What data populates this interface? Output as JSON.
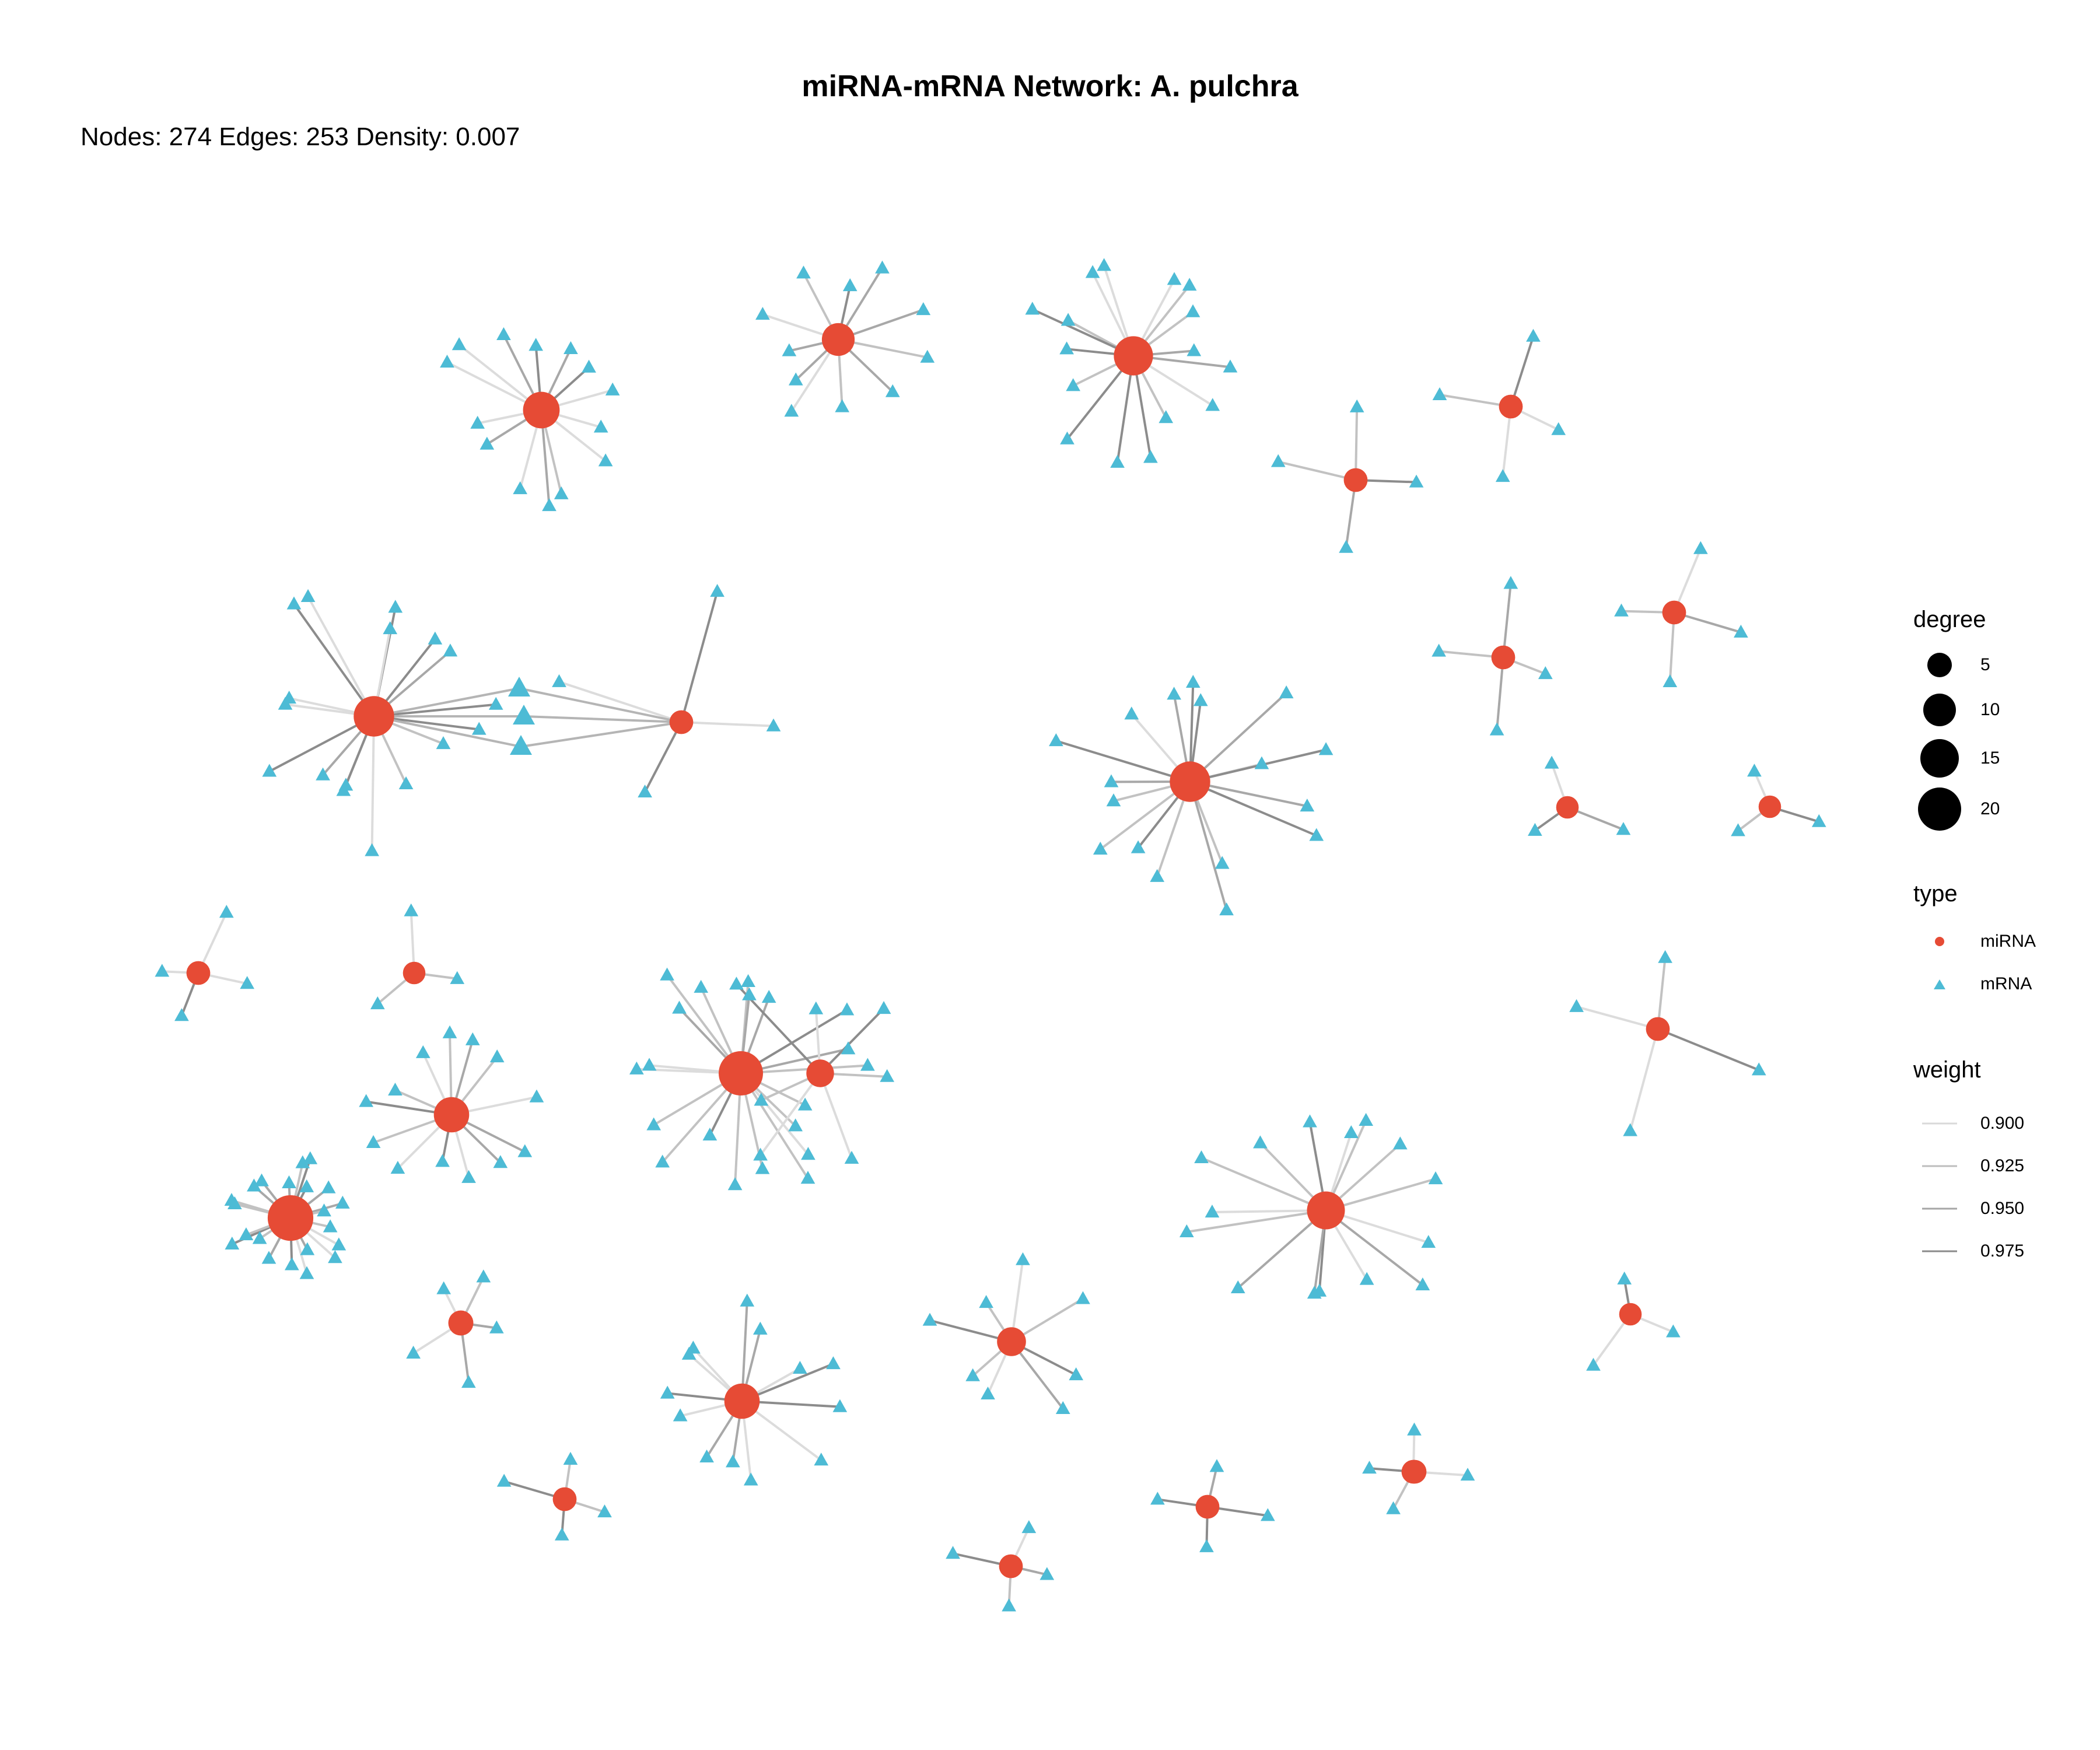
{
  "title": "miRNA-mRNA Network: A. pulchra",
  "subtitle": "Nodes: 274 Edges: 253 Density: 0.007",
  "colors": {
    "mirna": "#e64b35",
    "mrna": "#4dbbd5",
    "background": "#ffffff"
  },
  "legend": {
    "degree": {
      "title": "degree",
      "items": [
        {
          "label": "5",
          "value": 5
        },
        {
          "label": "10",
          "value": 10
        },
        {
          "label": "15",
          "value": 15
        },
        {
          "label": "20",
          "value": 20
        }
      ]
    },
    "type": {
      "title": "type",
      "items": [
        {
          "label": "miRNA",
          "shape": "circle",
          "color": "#e64b35"
        },
        {
          "label": "mRNA",
          "shape": "triangle",
          "color": "#4dbbd5"
        }
      ]
    },
    "weight": {
      "title": "weight",
      "items": [
        {
          "label": "0.900",
          "value": 0.9
        },
        {
          "label": "0.925",
          "value": 0.925
        },
        {
          "label": "0.950",
          "value": 0.95
        },
        {
          "label": "0.975",
          "value": 0.975
        }
      ]
    }
  },
  "network": {
    "node_count": 274,
    "edge_count": 253,
    "density": 0.007,
    "hub_degrees": [
      14,
      11,
      16,
      4,
      4,
      4,
      4,
      17,
      17,
      4,
      20,
      3,
      3,
      4,
      3,
      7,
      13,
      4,
      15,
      21,
      5,
      13,
      8,
      3,
      4,
      4,
      4,
      4,
      4
    ]
  }
}
